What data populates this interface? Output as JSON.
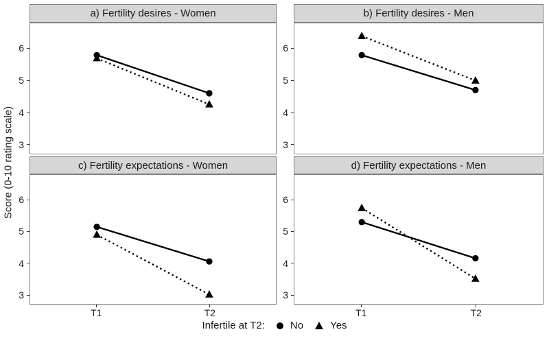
{
  "chart_data": {
    "type": "line",
    "ylabel": "Score (0-10 rating scale)",
    "categories": [
      "T1",
      "T2"
    ],
    "yticks": [
      3,
      4,
      5,
      6
    ],
    "ylim": [
      2.7,
      6.8
    ],
    "grid": "off",
    "legend_position": "bottom",
    "x_positions": [
      0.27,
      0.73
    ],
    "legend": {
      "title": "Infertile at T2:",
      "items": [
        {
          "label": "No",
          "marker": "circle",
          "line": "solid"
        },
        {
          "label": "Yes",
          "marker": "triangle",
          "line": "dotted"
        }
      ]
    },
    "panels": [
      {
        "id": "a",
        "title": "a) Fertility desires - Women",
        "series": [
          {
            "name": "No",
            "marker": "circle",
            "line": "solid",
            "values": [
              5.8,
              4.6
            ]
          },
          {
            "name": "Yes",
            "marker": "triangle",
            "line": "dotted",
            "values": [
              5.7,
              4.25
            ]
          }
        ]
      },
      {
        "id": "b",
        "title": "b) Fertility desires - Men",
        "series": [
          {
            "name": "No",
            "marker": "circle",
            "line": "solid",
            "values": [
              5.8,
              4.7
            ]
          },
          {
            "name": "Yes",
            "marker": "triangle",
            "line": "dotted",
            "values": [
              6.4,
              5.0
            ]
          }
        ]
      },
      {
        "id": "c",
        "title": "c) Fertility expectations - Women",
        "series": [
          {
            "name": "No",
            "marker": "circle",
            "line": "solid",
            "values": [
              5.15,
              4.05
            ]
          },
          {
            "name": "Yes",
            "marker": "triangle",
            "line": "dotted",
            "values": [
              4.9,
              3.0
            ]
          }
        ]
      },
      {
        "id": "d",
        "title": "d) Fertility expectations - Men",
        "series": [
          {
            "name": "No",
            "marker": "circle",
            "line": "solid",
            "values": [
              5.3,
              4.15
            ]
          },
          {
            "name": "Yes",
            "marker": "triangle",
            "line": "dotted",
            "values": [
              5.75,
              3.5
            ]
          }
        ]
      }
    ],
    "colors": {
      "series": "#000000",
      "strip_fill": "#d6d6d6",
      "border": "#7f7f7f",
      "text": "#1a1a1a"
    }
  }
}
